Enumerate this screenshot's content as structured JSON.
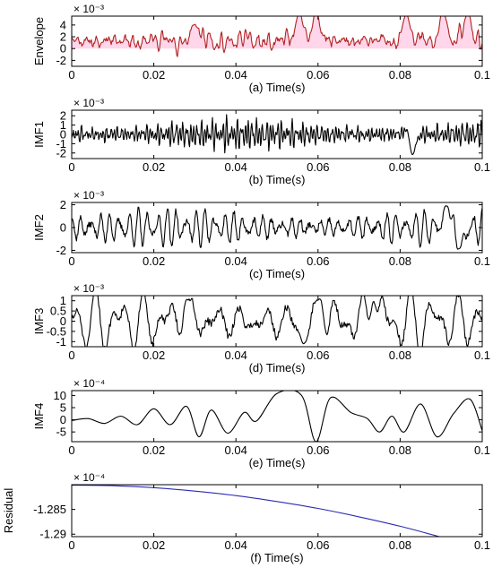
{
  "chart_data": [
    {
      "type": "line",
      "panel": "a",
      "ylabel": "Envelope",
      "xlabel": "(a) Time(s)",
      "exponent_label": "× 10⁻³",
      "xlim": [
        0,
        0.1
      ],
      "ylim": [
        -3,
        5.5
      ],
      "xticks": [
        0,
        0.02,
        0.04,
        0.06,
        0.08,
        0.1
      ],
      "xtick_labels": [
        "0",
        "0.02",
        "0.04",
        "0.06",
        "0.08",
        "0.1"
      ],
      "yticks": [
        4,
        2,
        0,
        -2
      ],
      "ytick_labels": [
        "4",
        "2",
        "0",
        "-2"
      ],
      "series": [
        {
          "color": "#b22222",
          "fill": "#ffd6ea",
          "style": "oscillation",
          "seed": 11,
          "n": 520,
          "freqs": [
            95,
            210,
            430,
            690,
            880
          ],
          "amp": 1.6,
          "offset": 1.3,
          "spikes": [
            [
              0.03,
              3.0
            ],
            [
              0.0555,
              5.1
            ],
            [
              0.0595,
              5.4
            ],
            [
              0.0815,
              4.8
            ],
            [
              0.0905,
              5.3
            ],
            [
              0.0965,
              5.0
            ]
          ]
        }
      ]
    },
    {
      "type": "line",
      "panel": "b",
      "ylabel": "IMF1",
      "xlabel": "(b) Time(s)",
      "exponent_label": "× 10⁻³",
      "xlim": [
        0,
        0.1
      ],
      "ylim": [
        -2.6,
        2.6
      ],
      "xticks": [
        0,
        0.02,
        0.04,
        0.06,
        0.08,
        0.1
      ],
      "xtick_labels": [
        "0",
        "0.02",
        "0.04",
        "0.06",
        "0.08",
        "0.1"
      ],
      "yticks": [
        2,
        1,
        0,
        -1,
        -2
      ],
      "ytick_labels": [
        "2",
        "1",
        "0",
        "-1",
        "-2"
      ],
      "series": [
        {
          "color": "#000000",
          "style": "oscillation",
          "seed": 23,
          "n": 700,
          "freqs": [
            820,
            1130,
            1500
          ],
          "amp": 1.0,
          "offset": 0,
          "spikes": [
            [
              0.0825,
              2.5
            ],
            [
              0.083,
              -2.4
            ]
          ]
        }
      ]
    },
    {
      "type": "line",
      "panel": "c",
      "ylabel": "IMF2",
      "xlabel": "(c) Time(s)",
      "exponent_label": "× 10⁻³",
      "xlim": [
        0,
        0.1
      ],
      "ylim": [
        -2.2,
        2.2
      ],
      "xticks": [
        0,
        0.02,
        0.04,
        0.06,
        0.08,
        0.1
      ],
      "xtick_labels": [
        "0",
        "0.02",
        "0.04",
        "0.06",
        "0.08",
        "0.1"
      ],
      "yticks": [
        2,
        0,
        -2
      ],
      "ytick_labels": [
        "2",
        "0",
        "-2"
      ],
      "series": [
        {
          "color": "#000000",
          "style": "oscillation",
          "seed": 37,
          "n": 600,
          "freqs": [
            430,
            560
          ],
          "amp": 1.05,
          "offset": 0,
          "spikes": [
            [
              0.0915,
              2.0
            ],
            [
              0.0945,
              -1.9
            ]
          ]
        }
      ]
    },
    {
      "type": "line",
      "panel": "d",
      "ylabel": "IMF3",
      "xlabel": "(d) Time(s)",
      "exponent_label": "× 10⁻³",
      "xlim": [
        0,
        0.1
      ],
      "ylim": [
        -1.25,
        1.25
      ],
      "xticks": [
        0,
        0.02,
        0.04,
        0.06,
        0.08,
        0.1
      ],
      "xtick_labels": [
        "0",
        "0.02",
        "0.04",
        "0.06",
        "0.08",
        "0.1"
      ],
      "yticks": [
        1,
        0.5,
        0,
        -0.5,
        -1
      ],
      "ytick_labels": [
        "1",
        "0.5",
        "0",
        "-0.5",
        "-1"
      ],
      "series": [
        {
          "color": "#000000",
          "style": "oscillation",
          "seed": 51,
          "n": 500,
          "freqs": [
            170,
            260
          ],
          "amp": 0.75,
          "offset": 0,
          "spikes": [
            [
              0.028,
              1.1
            ],
            [
              0.0565,
              -1.15
            ],
            [
              0.0605,
              1.15
            ],
            [
              0.0735,
              1.1
            ]
          ]
        }
      ]
    },
    {
      "type": "line",
      "panel": "e",
      "ylabel": "IMF4",
      "xlabel": "(e) Time(s)",
      "exponent_label": "× 10⁻⁴",
      "xlim": [
        0,
        0.1
      ],
      "ylim": [
        -9,
        12
      ],
      "xticks": [
        0,
        0.02,
        0.04,
        0.06,
        0.08,
        0.1
      ],
      "xtick_labels": [
        "0",
        "0.02",
        "0.04",
        "0.06",
        "0.08",
        "0.1"
      ],
      "yticks": [
        10,
        5,
        0,
        -5
      ],
      "ytick_labels": [
        "10",
        "5",
        "0",
        "-5"
      ],
      "series": [
        {
          "color": "#000000",
          "style": "points",
          "x": [
            0,
            0.004,
            0.008,
            0.012,
            0.016,
            0.02,
            0.024,
            0.028,
            0.031,
            0.034,
            0.038,
            0.042,
            0.045,
            0.05,
            0.056,
            0.0595,
            0.063,
            0.068,
            0.072,
            0.075,
            0.078,
            0.081,
            0.085,
            0.089,
            0.093,
            0.097,
            0.1
          ],
          "y": [
            -0.3,
            0.5,
            -1.5,
            1.5,
            -2.0,
            4.5,
            -2.0,
            5.5,
            -7.0,
            4.0,
            -5.5,
            3.0,
            -0.5,
            10.8,
            10.0,
            -9.0,
            9.0,
            3.0,
            0.5,
            -5.0,
            1.5,
            -5.0,
            6.5,
            -7.0,
            2.5,
            8.5,
            -4.5
          ]
        }
      ]
    },
    {
      "type": "line",
      "panel": "f",
      "ylabel": "Residual",
      "xlabel": "(f) Time(s)",
      "exponent_label": "× 10⁻⁴",
      "xlim": [
        0,
        0.1
      ],
      "ylim": [
        -1.2905,
        -1.28
      ],
      "xticks": [
        0,
        0.02,
        0.04,
        0.06,
        0.08,
        0.1
      ],
      "xtick_labels": [
        "0",
        "0.02",
        "0.04",
        "0.06",
        "0.08",
        "0.1"
      ],
      "yticks": [
        -1.285,
        -1.29
      ],
      "ytick_labels": [
        "-1.285",
        "-1.29"
      ],
      "series": [
        {
          "color": "#2b2bb8",
          "style": "points",
          "x": [
            0,
            0.01,
            0.02,
            0.03,
            0.04,
            0.05,
            0.06,
            0.07,
            0.08,
            0.09,
            0.1
          ],
          "y": [
            -1.2801,
            -1.2802,
            -1.2806,
            -1.2813,
            -1.2822,
            -1.2834,
            -1.2848,
            -1.2865,
            -1.2884,
            -1.2906,
            -1.2928
          ]
        }
      ]
    }
  ]
}
